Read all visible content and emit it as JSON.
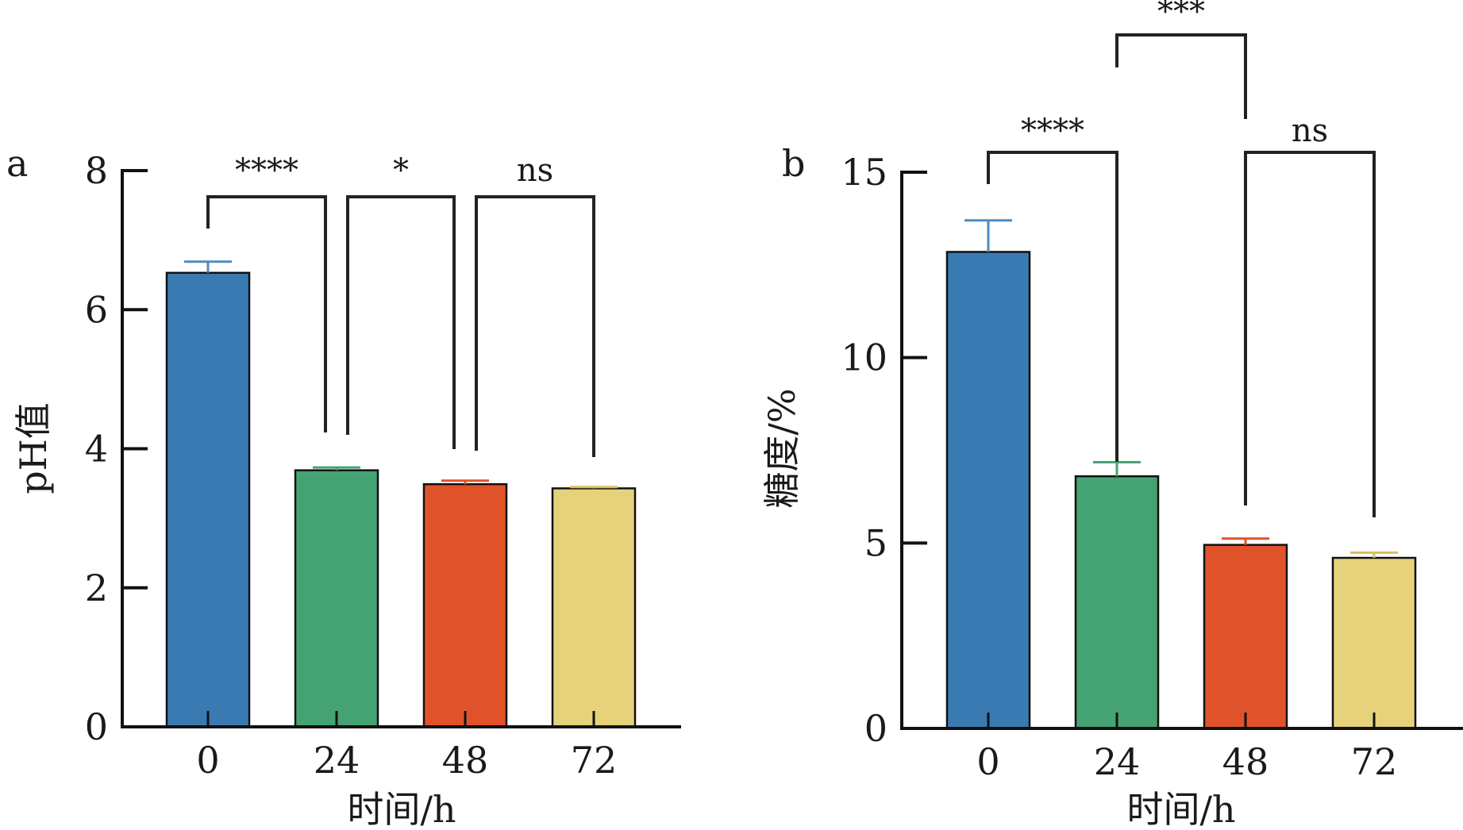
{
  "colors": {
    "bars": [
      "#3A7AB3",
      "#45A273",
      "#E0532A",
      "#E6D27A"
    ],
    "axis": "#111111",
    "bracket": "#222222",
    "error_bar_0": "#4E8CC2",
    "error_bar_24": "#45A273",
    "error_bar_48": "#E0532A",
    "error_bar_72": "#D8C060"
  },
  "chart_data": [
    {
      "type": "bar",
      "panel_label": "a",
      "categories": [
        "0",
        "24",
        "48",
        "72"
      ],
      "values": [
        6.53,
        3.69,
        3.49,
        3.43
      ],
      "errors": [
        0.16,
        0.04,
        0.05,
        0.02
      ],
      "xlabel": "时间/h",
      "ylabel": "pH值",
      "ylim": [
        0,
        8
      ],
      "yticks": [
        "0",
        "2",
        "4",
        "6",
        "8"
      ],
      "grid": false,
      "significance": [
        {
          "from": 0,
          "to": 1,
          "label": "****"
        },
        {
          "from": 1,
          "to": 2,
          "label": "*"
        },
        {
          "from": 2,
          "to": 3,
          "label": "ns"
        }
      ]
    },
    {
      "type": "bar",
      "panel_label": "b",
      "categories": [
        "0",
        "24",
        "48",
        "72"
      ],
      "values": [
        12.85,
        6.8,
        4.95,
        4.6
      ],
      "errors": [
        0.85,
        0.38,
        0.17,
        0.14
      ],
      "xlabel": "时间/h",
      "ylabel": "糖度/%",
      "ylim": [
        0,
        15
      ],
      "yticks": [
        "0",
        "5",
        "10",
        "15"
      ],
      "grid": false,
      "significance": [
        {
          "from": 0,
          "to": 1,
          "label": "****"
        },
        {
          "from": 1,
          "to": 2,
          "label": "***"
        },
        {
          "from": 2,
          "to": 3,
          "label": "ns"
        }
      ]
    }
  ]
}
